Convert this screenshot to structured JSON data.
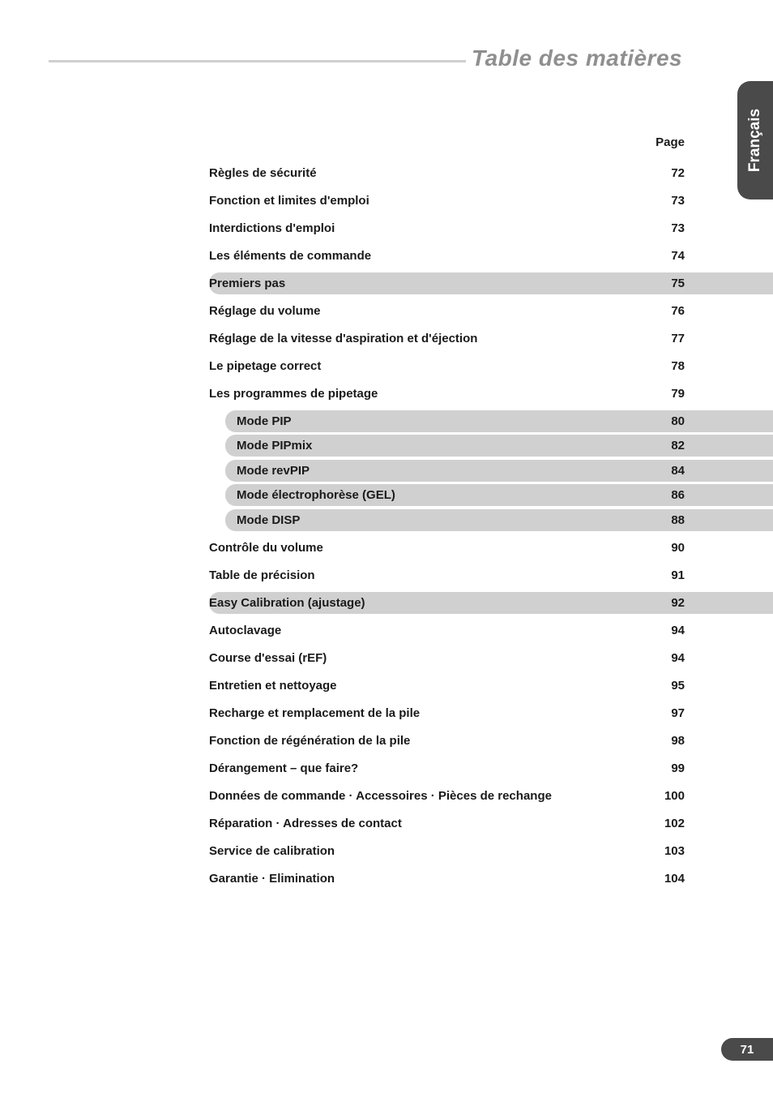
{
  "title": "Table des matières",
  "language_tab": "Français",
  "page_header": "Page",
  "page_number": "71",
  "colors": {
    "title_grey": "#8f8f8f",
    "rule_grey": "#cfcfcf",
    "band_grey": "#d0d0d0",
    "tab_bg": "#4a4a4a",
    "text": "#1a1a1a",
    "white": "#ffffff"
  },
  "entries": [
    {
      "label": "Règles de sécurité",
      "page": "72",
      "style": "plain"
    },
    {
      "label": "Fonction et limites d'emploi",
      "page": "73",
      "style": "plain"
    },
    {
      "label": "Interdictions d'emploi",
      "page": "73",
      "style": "plain"
    },
    {
      "label": "Les éléments de commande",
      "page": "74",
      "style": "plain"
    },
    {
      "label": "Premiers pas",
      "page": "75",
      "style": "band"
    },
    {
      "label": "Réglage du volume",
      "page": "76",
      "style": "plain"
    },
    {
      "label": "Réglage de la vitesse d'aspiration et d'éjection",
      "page": "77",
      "style": "plain"
    },
    {
      "label": "Le pipetage correct",
      "page": "78",
      "style": "plain"
    },
    {
      "label": "Les programmes de pipetage",
      "page": "79",
      "style": "plain"
    },
    {
      "label": "Mode PIP",
      "page": "80",
      "style": "subband"
    },
    {
      "label": "Mode PIPmix",
      "page": "82",
      "style": "subband"
    },
    {
      "label": "Mode revPIP",
      "page": "84",
      "style": "subband"
    },
    {
      "label": "Mode électrophorèse (GEL)",
      "page": "86",
      "style": "subband"
    },
    {
      "label": "Mode DISP",
      "page": "88",
      "style": "subband"
    },
    {
      "label": "Contrôle du volume",
      "page": "90",
      "style": "plain"
    },
    {
      "label": "Table de précision",
      "page": "91",
      "style": "plain"
    },
    {
      "label": "Easy Calibration (ajustage)",
      "page": "92",
      "style": "band"
    },
    {
      "label": "Autoclavage",
      "page": "94",
      "style": "plain"
    },
    {
      "label": "Course d'essai (rEF)",
      "page": "94",
      "style": "plain"
    },
    {
      "label": "Entretien et nettoyage",
      "page": "95",
      "style": "plain"
    },
    {
      "label": "Recharge et remplacement de la pile",
      "page": "97",
      "style": "plain"
    },
    {
      "label": "Fonction de régénération de la pile",
      "page": "98",
      "style": "plain"
    },
    {
      "label": "Dérangement – que faire?",
      "page": "99",
      "style": "plain"
    },
    {
      "label": "Données de commande · Accessoires · Pièces de rechange",
      "page": "100",
      "style": "plain"
    },
    {
      "label": "Réparation · Adresses de contact",
      "page": "102",
      "style": "plain"
    },
    {
      "label": "Service de calibration",
      "page": "103",
      "style": "plain"
    },
    {
      "label": "Garantie · Elimination",
      "page": "104",
      "style": "plain"
    }
  ]
}
